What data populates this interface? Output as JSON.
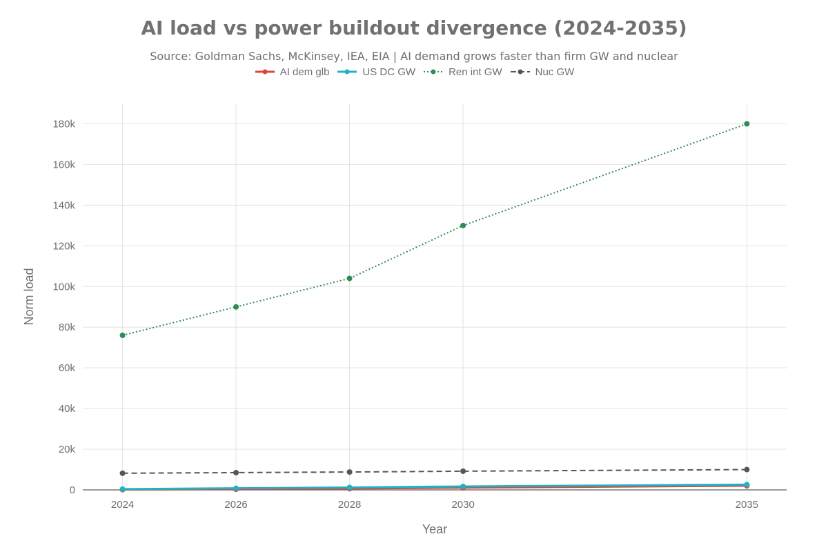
{
  "chart_data": {
    "type": "line",
    "title": "AI load vs power buildout divergence (2024-2035)",
    "subtitle": "Source: Goldman Sachs, McKinsey, IEA, EIA | AI demand grows faster than firm GW and nuclear",
    "xlabel": "Year",
    "ylabel": "Norm load",
    "x": [
      2024,
      2026,
      2028,
      2030,
      2035
    ],
    "x_tick_labels": [
      "2024",
      "2026",
      "2028",
      "2030",
      "2035"
    ],
    "xlim": [
      2023.3,
      2035.7
    ],
    "ylim": [
      0,
      190000
    ],
    "y_ticks": [
      0,
      20000,
      40000,
      60000,
      80000,
      100000,
      120000,
      140000,
      160000,
      180000
    ],
    "y_tick_labels": [
      "0",
      "20k",
      "40k",
      "60k",
      "80k",
      "100k",
      "120k",
      "140k",
      "160k",
      "180k"
    ],
    "grid": true,
    "legend_position": "top-center",
    "series": [
      {
        "name": "AI dem glb",
        "key": "ai-dem-glb",
        "color": "#d9453b",
        "dash": "solid",
        "width": 2.5,
        "values": [
          100,
          300,
          600,
          1000,
          2000
        ]
      },
      {
        "name": "US DC GW",
        "key": "us-dc-gw",
        "color": "#20b2c2",
        "dash": "solid",
        "width": 3,
        "values": [
          400,
          800,
          1200,
          1700,
          2600
        ]
      },
      {
        "name": "Ren int GW",
        "key": "ren-int-gw",
        "color": "#2e8b57",
        "dash": "dotted",
        "width": 2,
        "values": [
          76000,
          90000,
          104000,
          130000,
          180000
        ]
      },
      {
        "name": "Nuc GW",
        "key": "nuc-gw",
        "color": "#555555",
        "dash": "dashed",
        "width": 2,
        "values": [
          8200,
          8500,
          8800,
          9200,
          10000
        ]
      }
    ]
  }
}
